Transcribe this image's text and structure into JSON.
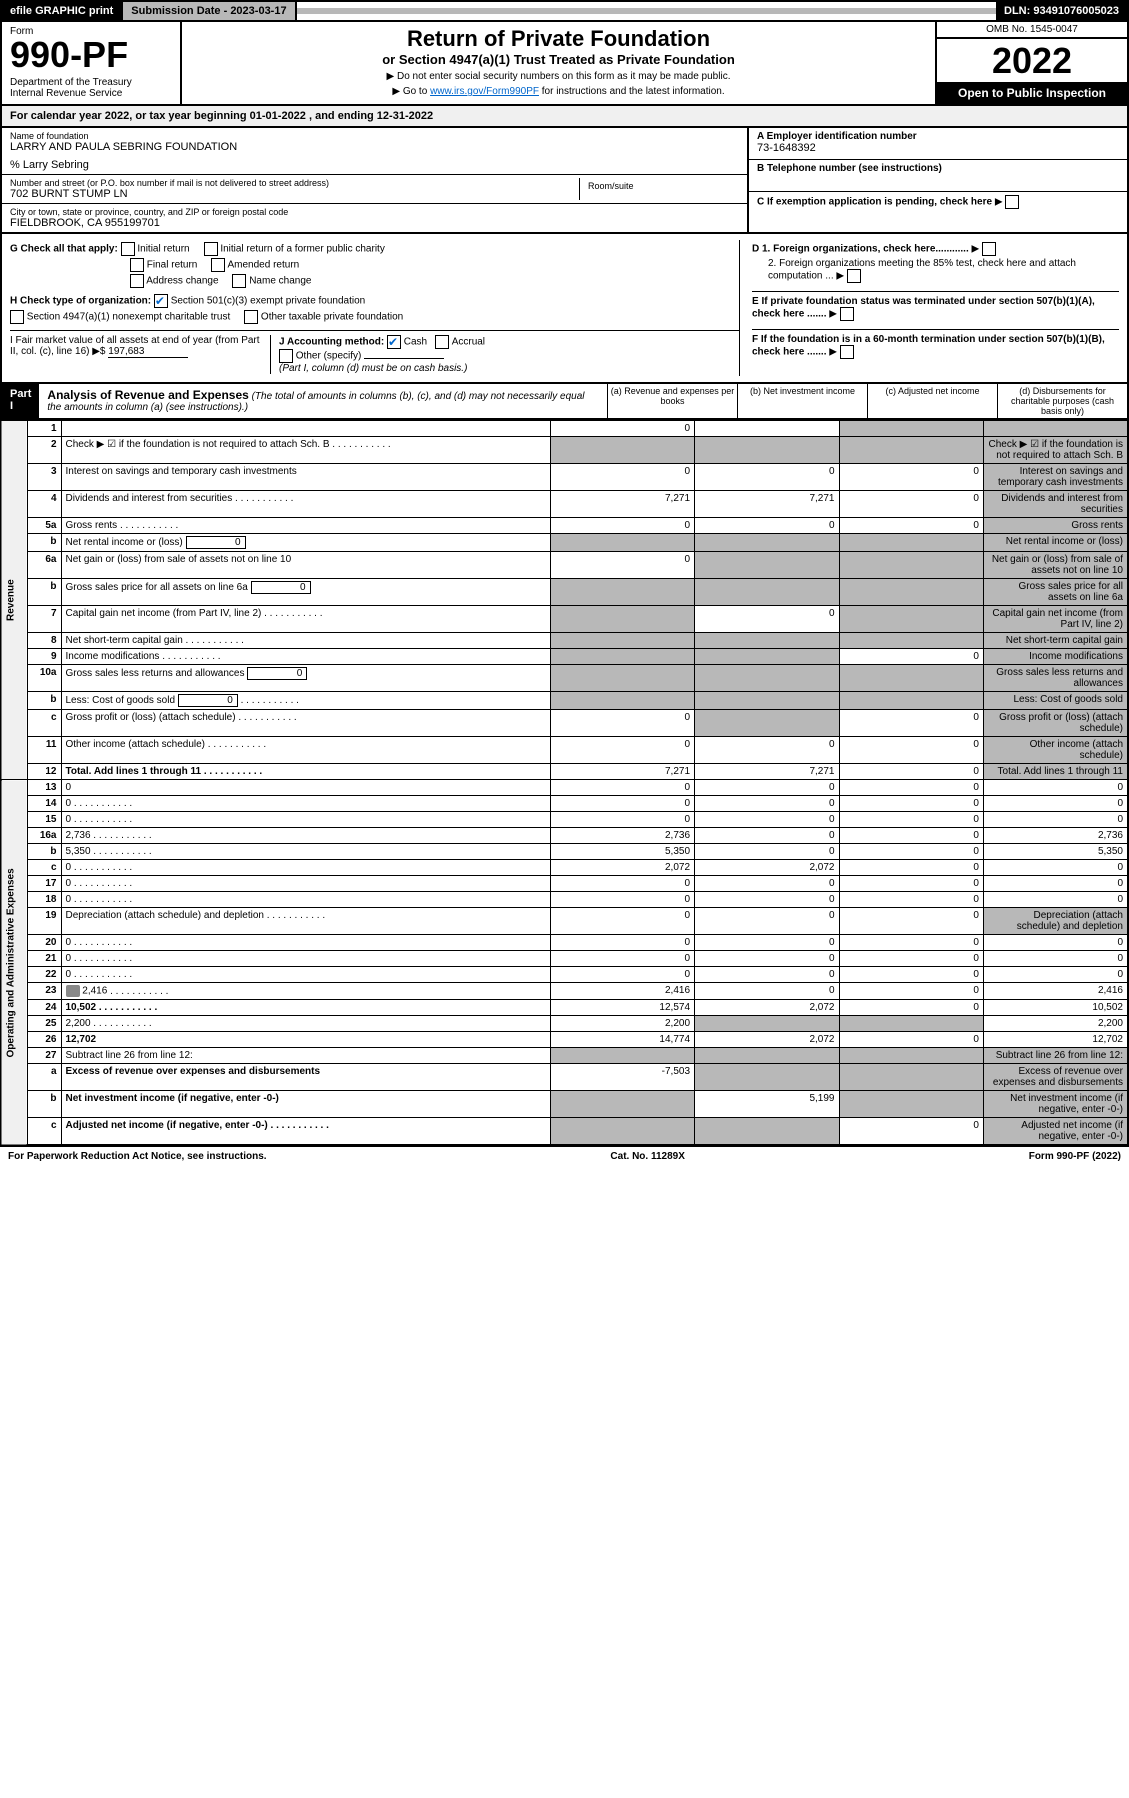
{
  "topbar": {
    "efile": "efile GRAPHIC print",
    "submission": "Submission Date - 2023-03-17",
    "dln": "DLN: 93491076005023"
  },
  "header": {
    "form_label": "Form",
    "form_num": "990-PF",
    "dept": "Department of the Treasury\nInternal Revenue Service",
    "title": "Return of Private Foundation",
    "subtitle": "or Section 4947(a)(1) Trust Treated as Private Foundation",
    "instr1": "▶ Do not enter social security numbers on this form as it may be made public.",
    "instr2_pre": "▶ Go to ",
    "instr2_link": "www.irs.gov/Form990PF",
    "instr2_post": " for instructions and the latest information.",
    "omb": "OMB No. 1545-0047",
    "year": "2022",
    "open": "Open to Public Inspection"
  },
  "cal_year": "For calendar year 2022, or tax year beginning 01-01-2022             , and ending 12-31-2022",
  "entity": {
    "name_lbl": "Name of foundation",
    "name": "LARRY AND PAULA SEBRING FOUNDATION",
    "care_of": "% Larry Sebring",
    "addr_lbl": "Number and street (or P.O. box number if mail is not delivered to street address)",
    "addr": "702 BURNT STUMP LN",
    "room_lbl": "Room/suite",
    "city_lbl": "City or town, state or province, country, and ZIP or foreign postal code",
    "city": "FIELDBROOK, CA  955199701",
    "a_lbl": "A Employer identification number",
    "a_val": "73-1648392",
    "b_lbl": "B Telephone number (see instructions)",
    "c_lbl": "C If exemption application is pending, check here",
    "d1_lbl": "D 1. Foreign organizations, check here............",
    "d2_lbl": "2. Foreign organizations meeting the 85% test, check here and attach computation ...",
    "e_lbl": "E  If private foundation status was terminated under section 507(b)(1)(A), check here .......",
    "f_lbl": "F  If the foundation is in a 60-month termination under section 507(b)(1)(B), check here .......",
    "g_lbl": "G Check all that apply:",
    "g_initial": "Initial return",
    "g_initial_former": "Initial return of a former public charity",
    "g_final": "Final return",
    "g_amended": "Amended return",
    "g_address": "Address change",
    "g_name": "Name change",
    "h_lbl": "H Check type of organization:",
    "h_501c3": "Section 501(c)(3) exempt private foundation",
    "h_4947": "Section 4947(a)(1) nonexempt charitable trust",
    "h_other_tax": "Other taxable private foundation",
    "i_lbl": "I Fair market value of all assets at end of year (from Part II, col. (c), line 16) ▶$",
    "i_val": "197,683",
    "j_lbl": "J Accounting method:",
    "j_cash": "Cash",
    "j_accrual": "Accrual",
    "j_other": "Other (specify)",
    "j_note": "(Part I, column (d) must be on cash basis.)"
  },
  "part1": {
    "label": "Part I",
    "title": "Analysis of Revenue and Expenses",
    "note": " (The total of amounts in columns (b), (c), and (d) may not necessarily equal the amounts in column (a) (see instructions).)",
    "col_a": "(a)  Revenue and expenses per books",
    "col_b": "(b)  Net investment income",
    "col_c": "(c)  Adjusted net income",
    "col_d": "(d)  Disbursements for charitable purposes (cash basis only)",
    "side_rev": "Revenue",
    "side_exp": "Operating and Administrative Expenses"
  },
  "rows": [
    {
      "n": "1",
      "d": "",
      "a": "0",
      "b": "",
      "c": "",
      "cs": true,
      "ds": true
    },
    {
      "n": "2",
      "d": "Check ▶ ☑ if the foundation is not required to attach Sch. B",
      "dots": true,
      "as": true,
      "bs": true,
      "cs": true,
      "ds": true
    },
    {
      "n": "3",
      "d": "Interest on savings and temporary cash investments",
      "a": "0",
      "b": "0",
      "c": "0",
      "ds": true
    },
    {
      "n": "4",
      "d": "Dividends and interest from securities",
      "dots": true,
      "a": "7,271",
      "b": "7,271",
      "c": "0",
      "ds": true
    },
    {
      "n": "5a",
      "d": "Gross rents",
      "dots": true,
      "a": "0",
      "b": "0",
      "c": "0",
      "ds": true
    },
    {
      "n": "b",
      "d": "Net rental income or (loss)",
      "nested": "0",
      "as": true,
      "bs": true,
      "cs": true,
      "ds": true
    },
    {
      "n": "6a",
      "d": "Net gain or (loss) from sale of assets not on line 10",
      "a": "0",
      "bs": true,
      "cs": true,
      "ds": true
    },
    {
      "n": "b",
      "d": "Gross sales price for all assets on line 6a",
      "nested": "0",
      "as": true,
      "bs": true,
      "cs": true,
      "ds": true
    },
    {
      "n": "7",
      "d": "Capital gain net income (from Part IV, line 2)",
      "dots": true,
      "as": true,
      "b": "0",
      "cs": true,
      "ds": true
    },
    {
      "n": "8",
      "d": "Net short-term capital gain",
      "dots": true,
      "as": true,
      "bs": true,
      "cs": true,
      "ds": true
    },
    {
      "n": "9",
      "d": "Income modifications",
      "dots": true,
      "as": true,
      "bs": true,
      "c": "0",
      "ds": true
    },
    {
      "n": "10a",
      "d": "Gross sales less returns and allowances",
      "nested": "0",
      "as": true,
      "bs": true,
      "cs": true,
      "ds": true
    },
    {
      "n": "b",
      "d": "Less: Cost of goods sold",
      "dots": true,
      "nested": "0",
      "as": true,
      "bs": true,
      "cs": true,
      "ds": true
    },
    {
      "n": "c",
      "d": "Gross profit or (loss) (attach schedule)",
      "dots": true,
      "a": "0",
      "bs": true,
      "c": "0",
      "ds": true
    },
    {
      "n": "11",
      "d": "Other income (attach schedule)",
      "dots": true,
      "a": "0",
      "b": "0",
      "c": "0",
      "ds": true
    },
    {
      "n": "12",
      "d": "Total. Add lines 1 through 11",
      "dots": true,
      "bold": true,
      "a": "7,271",
      "b": "7,271",
      "c": "0",
      "ds": true
    }
  ],
  "exp_rows": [
    {
      "n": "13",
      "d": "0",
      "a": "0",
      "b": "0",
      "c": "0"
    },
    {
      "n": "14",
      "d": "0",
      "dots": true,
      "a": "0",
      "b": "0",
      "c": "0"
    },
    {
      "n": "15",
      "d": "0",
      "dots": true,
      "a": "0",
      "b": "0",
      "c": "0"
    },
    {
      "n": "16a",
      "d": "2,736",
      "dots": true,
      "a": "2,736",
      "b": "0",
      "c": "0"
    },
    {
      "n": "b",
      "d": "5,350",
      "dots": true,
      "a": "5,350",
      "b": "0",
      "c": "0"
    },
    {
      "n": "c",
      "d": "0",
      "dots": true,
      "a": "2,072",
      "b": "2,072",
      "c": "0"
    },
    {
      "n": "17",
      "d": "0",
      "dots": true,
      "a": "0",
      "b": "0",
      "c": "0"
    },
    {
      "n": "18",
      "d": "0",
      "dots": true,
      "a": "0",
      "b": "0",
      "c": "0"
    },
    {
      "n": "19",
      "d": "Depreciation (attach schedule) and depletion",
      "dots": true,
      "a": "0",
      "b": "0",
      "c": "0",
      "ds": true
    },
    {
      "n": "20",
      "d": "0",
      "dots": true,
      "a": "0",
      "b": "0",
      "c": "0"
    },
    {
      "n": "21",
      "d": "0",
      "dots": true,
      "a": "0",
      "b": "0",
      "c": "0"
    },
    {
      "n": "22",
      "d": "0",
      "dots": true,
      "a": "0",
      "b": "0",
      "c": "0"
    },
    {
      "n": "23",
      "d": "2,416",
      "dots": true,
      "attach": true,
      "a": "2,416",
      "b": "0",
      "c": "0"
    },
    {
      "n": "24",
      "d": "10,502",
      "dots": true,
      "bold": true,
      "a": "12,574",
      "b": "2,072",
      "c": "0"
    },
    {
      "n": "25",
      "d": "2,200",
      "dots": true,
      "a": "2,200",
      "bs": true,
      "cs": true
    },
    {
      "n": "26",
      "d": "12,702",
      "bold": true,
      "a": "14,774",
      "b": "2,072",
      "c": "0"
    },
    {
      "n": "27",
      "d": "Subtract line 26 from line 12:",
      "as": true,
      "bs": true,
      "cs": true,
      "ds": true
    },
    {
      "n": "a",
      "d": "Excess of revenue over expenses and disbursements",
      "bold": true,
      "a": "-7,503",
      "bs": true,
      "cs": true,
      "ds": true
    },
    {
      "n": "b",
      "d": "Net investment income (if negative, enter -0-)",
      "bold": true,
      "as": true,
      "b": "5,199",
      "cs": true,
      "ds": true
    },
    {
      "n": "c",
      "d": "Adjusted net income (if negative, enter -0-)",
      "dots": true,
      "bold": true,
      "as": true,
      "bs": true,
      "c": "0",
      "ds": true
    }
  ],
  "footer": {
    "left": "For Paperwork Reduction Act Notice, see instructions.",
    "mid": "Cat. No. 11289X",
    "right": "Form 990-PF (2022)"
  }
}
